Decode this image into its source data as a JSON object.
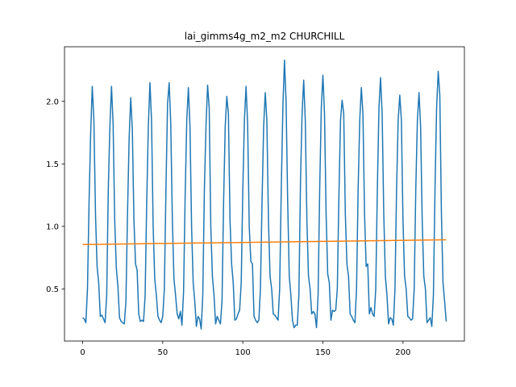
{
  "chart_data": {
    "type": "line",
    "title": "lai_gimms4g_m2_m2 CHURCHILL",
    "xlim": [
      -11.35,
      238.35
    ],
    "ylim": [
      0.083,
      2.437
    ],
    "xticks": [
      0,
      50,
      100,
      150,
      200
    ],
    "yticks": [
      0.5,
      {
        "value": 1,
        "label": "1.0"
      },
      1.5,
      {
        "value": 2,
        "label": "2.0"
      }
    ],
    "grid": false,
    "series": [
      {
        "color": "#1f77b4",
        "x": [
          0,
          1,
          2,
          3,
          4,
          5,
          6,
          7,
          8,
          9,
          10,
          11,
          12,
          13,
          14,
          15,
          16,
          17,
          18,
          19,
          20,
          21,
          22,
          23,
          24,
          25,
          26,
          27,
          28,
          29,
          30,
          31,
          32,
          33,
          34,
          35,
          36,
          37,
          38,
          39,
          40,
          41,
          42,
          43,
          44,
          45,
          46,
          47,
          48,
          49,
          50,
          51,
          52,
          53,
          54,
          55,
          56,
          57,
          58,
          59,
          60,
          61,
          62,
          63,
          64,
          65,
          66,
          67,
          68,
          69,
          70,
          71,
          72,
          73,
          74,
          75,
          76,
          77,
          78,
          79,
          80,
          81,
          82,
          83,
          84,
          85,
          86,
          87,
          88,
          89,
          90,
          91,
          92,
          93,
          94,
          95,
          96,
          97,
          98,
          99,
          100,
          101,
          102,
          103,
          104,
          105,
          106,
          107,
          108,
          109,
          110,
          111,
          112,
          113,
          114,
          115,
          116,
          117,
          118,
          119,
          120,
          121,
          122,
          123,
          124,
          125,
          126,
          127,
          128,
          129,
          130,
          131,
          132,
          133,
          134,
          135,
          136,
          137,
          138,
          139,
          140,
          141,
          142,
          143,
          144,
          145,
          146,
          147,
          148,
          149,
          150,
          151,
          152,
          153,
          154,
          155,
          156,
          157,
          158,
          159,
          160,
          161,
          162,
          163,
          164,
          165,
          166,
          167,
          168,
          169,
          170,
          171,
          172,
          173,
          174,
          175,
          176,
          177,
          178,
          179,
          180,
          181,
          182,
          183,
          184,
          185,
          186,
          187,
          188,
          189,
          190,
          191,
          192,
          193,
          194,
          195,
          196,
          197,
          198,
          199,
          200,
          201,
          202,
          203,
          204,
          205,
          206,
          207,
          208,
          209,
          210,
          211,
          212,
          213,
          214,
          215,
          216,
          217,
          218,
          219,
          220,
          221,
          222,
          223,
          224,
          225,
          226,
          227
        ],
        "values": [
          0.27,
          0.26,
          0.23,
          0.5,
          1.2,
          1.75,
          2.12,
          1.85,
          1.1,
          0.68,
          0.55,
          0.28,
          0.29,
          0.26,
          0.23,
          0.45,
          1.3,
          1.8,
          2.12,
          1.82,
          1.05,
          0.67,
          0.52,
          0.27,
          0.24,
          0.23,
          0.22,
          0.4,
          1.1,
          1.7,
          2.03,
          1.78,
          1.05,
          0.7,
          0.65,
          0.3,
          0.24,
          0.25,
          0.24,
          0.45,
          1.2,
          1.8,
          2.15,
          1.85,
          1.0,
          0.58,
          0.45,
          0.28,
          0.25,
          0.23,
          0.28,
          0.5,
          1.3,
          1.98,
          2.15,
          1.82,
          1.05,
          0.58,
          0.45,
          0.3,
          0.26,
          0.32,
          0.21,
          0.48,
          1.25,
          1.85,
          2.11,
          1.8,
          1.0,
          0.55,
          0.4,
          0.2,
          0.28,
          0.26,
          0.18,
          0.45,
          1.3,
          1.8,
          2.13,
          1.95,
          1.0,
          0.6,
          0.45,
          0.22,
          0.28,
          0.25,
          0.22,
          0.4,
          1.2,
          1.8,
          2.04,
          1.9,
          1.05,
          0.7,
          0.55,
          0.25,
          0.26,
          0.3,
          0.33,
          0.55,
          1.3,
          1.85,
          2.12,
          1.82,
          1.0,
          0.72,
          0.7,
          0.28,
          0.25,
          0.23,
          0.25,
          0.5,
          1.2,
          1.8,
          2.07,
          1.85,
          1.05,
          0.6,
          0.5,
          0.3,
          0.29,
          0.27,
          0.25,
          0.5,
          1.3,
          1.95,
          2.33,
          2.0,
          1.2,
          0.6,
          0.45,
          0.25,
          0.19,
          0.21,
          0.21,
          0.45,
          1.35,
          1.9,
          2.17,
          1.85,
          1.05,
          0.6,
          0.5,
          0.3,
          0.32,
          0.3,
          0.19,
          0.45,
          1.3,
          1.95,
          2.21,
          1.9,
          1.1,
          0.62,
          0.55,
          0.25,
          0.33,
          0.32,
          0.33,
          0.5,
          1.25,
          1.85,
          2.01,
          1.9,
          1.1,
          0.7,
          0.6,
          0.3,
          0.28,
          0.25,
          0.23,
          0.5,
          1.3,
          1.85,
          2.11,
          1.9,
          1.1,
          0.68,
          0.7,
          0.3,
          0.35,
          0.3,
          0.28,
          0.5,
          1.3,
          1.95,
          2.19,
          1.9,
          1.1,
          0.6,
          0.45,
          0.22,
          0.27,
          0.26,
          0.21,
          0.5,
          1.3,
          1.85,
          2.05,
          1.85,
          1.05,
          0.6,
          0.5,
          0.28,
          0.27,
          0.25,
          0.26,
          0.5,
          1.3,
          1.85,
          2.07,
          1.8,
          1.05,
          0.6,
          0.5,
          0.23,
          0.25,
          0.27,
          0.2,
          0.45,
          1.3,
          1.95,
          2.24,
          2.05,
          1.1,
          0.55,
          0.4,
          0.24
        ]
      },
      {
        "color": "#ff7f0e",
        "x": [
          0,
          227
        ],
        "values": [
          0.855,
          0.893
        ]
      }
    ]
  }
}
